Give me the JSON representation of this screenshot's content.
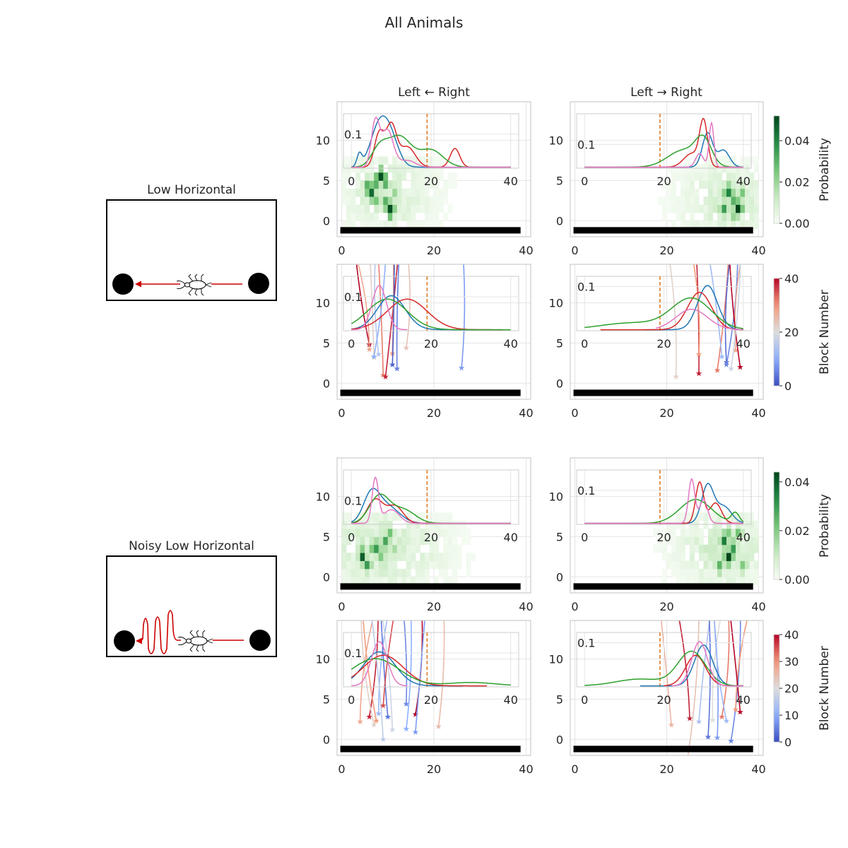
{
  "title": "All Animals",
  "columns": [
    "Left ← Right",
    "Left → Right"
  ],
  "conditions": [
    {
      "name": "Low Horizontal",
      "style": "straight"
    },
    {
      "name": "Noisy Low Horizontal",
      "style": "noisy"
    }
  ],
  "colors": {
    "axis_border": "#cccccc",
    "grid": "#e5e5e5",
    "barrier": "#000000",
    "midline": "#e07b24",
    "arrow": "#cc0000",
    "kde": [
      "#1f77b4",
      "#d62728",
      "#2ca02c",
      "#e377c2"
    ]
  },
  "chart_data": {
    "type": "heatmap",
    "x_ticks": [
      0,
      20,
      40
    ],
    "y_ticks": [
      0,
      5,
      10
    ],
    "xlim": [
      -1,
      41
    ],
    "ylim": [
      -2,
      14.8
    ],
    "inset_x_ticks": [
      0,
      20,
      40
    ],
    "inset_xlim": [
      -2,
      42
    ],
    "inset_y_label": "0.1",
    "midline_x": 19,
    "colorbars": [
      {
        "label": "Probability",
        "ticks": [
          "0.00",
          "0.02",
          "0.04"
        ],
        "range": [
          0,
          0.052
        ],
        "colormap": "Greens"
      },
      {
        "label": "Block Number",
        "ticks": [
          "0",
          "20",
          "40"
        ],
        "range": [
          0,
          40
        ],
        "colormap": "coolwarm"
      },
      {
        "label": "Probability",
        "ticks": [
          "0.00",
          "0.02",
          "0.04"
        ],
        "range": [
          0,
          0.044
        ],
        "colormap": "Greens"
      },
      {
        "label": "Block Number",
        "ticks": [
          "0",
          "10",
          "20",
          "30",
          "40"
        ],
        "range": [
          0,
          40
        ],
        "colormap": "coolwarm"
      }
    ],
    "panels": [
      {
        "condition": "Low Horizontal",
        "direction": "Left ← Right",
        "kind": "heatmap",
        "inset_label_y": 0.1,
        "ymax": 0.16,
        "kde": [
          {
            "peaks": [
              [
                2,
                0.035,
                0.6
              ],
              [
                7,
                0.12,
                2.2
              ],
              [
                10,
                0.07,
                2
              ]
            ]
          },
          {
            "peaks": [
              [
                7,
                0.1,
                1.2
              ],
              [
                10,
                0.12,
                1.3
              ],
              [
                14,
                0.06,
                2
              ],
              [
                26,
                0.055,
                1.2
              ]
            ]
          },
          {
            "peaks": [
              [
                7,
                0.05,
                2
              ],
              [
                12,
                0.09,
                3
              ],
              [
                20,
                0.05,
                3
              ]
            ]
          },
          {
            "peaks": [
              [
                6,
                0.13,
                1
              ],
              [
                9,
                0.11,
                1.5
              ],
              [
                14,
                0.02,
                2
              ]
            ]
          }
        ],
        "hot": [
          [
            6,
            3,
            0.045
          ],
          [
            8,
            5,
            0.05
          ],
          [
            7,
            4,
            0.03
          ],
          [
            10,
            1,
            0.05
          ],
          [
            9,
            2,
            0.03
          ],
          [
            5,
            4,
            0.03
          ],
          [
            9,
            4,
            0.03
          ],
          [
            7,
            2,
            0.025
          ],
          [
            11,
            3,
            0.02
          ]
        ],
        "spread": {
          "cx": 9,
          "cy": 3,
          "sx": 3,
          "sy": 2,
          "minx": 0,
          "maxx": 27
        }
      },
      {
        "condition": "Low Horizontal",
        "direction": "Left → Right",
        "kind": "heatmap",
        "inset_label_y": 0.07,
        "ymax": 0.16,
        "kde": [
          {
            "peaks": [
              [
                31,
                0.1,
                1.3
              ],
              [
                35,
                0.05,
                1.5
              ]
            ]
          },
          {
            "peaks": [
              [
                30,
                0.13,
                1
              ],
              [
                27,
                0.04,
                2
              ]
            ]
          },
          {
            "peaks": [
              [
                25,
                0.05,
                4
              ],
              [
                30,
                0.07,
                2
              ]
            ]
          },
          {
            "peaks": [
              [
                32,
                0.13,
                0.6
              ],
              [
                29,
                0.04,
                1
              ]
            ]
          }
        ],
        "hot": [
          [
            35,
            1,
            0.052
          ],
          [
            33,
            3,
            0.04
          ],
          [
            32,
            1,
            0.035
          ],
          [
            34,
            2,
            0.03
          ],
          [
            36,
            3,
            0.025
          ],
          [
            33,
            4,
            0.02
          ],
          [
            34,
            0,
            0.02
          ]
        ],
        "spread": {
          "cx": 33,
          "cy": 2,
          "sx": 3,
          "sy": 2,
          "minx": 12,
          "maxx": 40
        }
      },
      {
        "condition": "Low Horizontal",
        "direction": "Left ← Right",
        "kind": "trajectory",
        "inset_label_y": 0.1,
        "ymax": 0.16,
        "kde": [
          {
            "peaks": [
              [
                10,
                0.1,
                3.5
              ]
            ],
            "range": [
              0,
              32
            ]
          },
          {
            "peaks": [
              [
                14,
                0.09,
                5
              ]
            ],
            "range": [
              0,
              38
            ]
          },
          {
            "peaks": [
              [
                9,
                0.09,
                5
              ]
            ],
            "range": [
              0,
              40
            ]
          },
          {
            "peaks": [
              [
                7,
                0.13,
                1.8
              ]
            ],
            "range": [
              0,
              14
            ]
          }
        ],
        "endpoints": [
          [
            6,
            4.8,
            40
          ],
          [
            6,
            4.2,
            28
          ],
          [
            7,
            3.2,
            22
          ],
          [
            9,
            1,
            32
          ],
          [
            9.5,
            0.8,
            38
          ],
          [
            11,
            3.7,
            30
          ],
          [
            11,
            2.3,
            2
          ],
          [
            12,
            1.8,
            5
          ],
          [
            14,
            4.4,
            24
          ],
          [
            26,
            1.9,
            8
          ],
          [
            8,
            3.6,
            15
          ],
          [
            7,
            3.3,
            10
          ]
        ]
      },
      {
        "condition": "Low Horizontal",
        "direction": "Left → Right",
        "kind": "trajectory",
        "inset_label_y": 0.13,
        "ymax": 0.16,
        "kde": [
          {
            "peaks": [
              [
                31,
                0.13,
                2.5
              ]
            ],
            "range": [
              15,
              40
            ]
          },
          {
            "peaks": [
              [
                29,
                0.11,
                3
              ]
            ],
            "range": [
              4,
              40
            ]
          },
          {
            "peaks": [
              [
                27,
                0.09,
                5
              ],
              [
                12,
                0.02,
                8
              ]
            ],
            "range": [
              0,
              40
            ]
          },
          {
            "peaks": [
              [
                27,
                0.06,
                4
              ]
            ],
            "range": [
              18,
              40
            ]
          }
        ],
        "endpoints": [
          [
            22,
            0.8,
            22
          ],
          [
            27,
            1.2,
            38
          ],
          [
            27,
            3.6,
            30
          ],
          [
            31,
            1.6,
            32
          ],
          [
            33,
            2.6,
            3
          ],
          [
            33,
            2.3,
            6
          ],
          [
            35,
            4.1,
            28
          ],
          [
            36,
            2,
            40
          ],
          [
            34,
            1.8,
            18
          ],
          [
            32,
            3.3,
            12
          ]
        ]
      },
      {
        "condition": "Noisy Low Horizontal",
        "direction": "Left ← Right",
        "kind": "heatmap",
        "inset_label_y": 0.07,
        "ymax": 0.16,
        "kde": [
          {
            "peaks": [
              [
                5,
                0.08,
                2
              ],
              [
                9,
                0.05,
                3
              ]
            ]
          },
          {
            "peaks": [
              [
                6,
                0.07,
                2
              ],
              [
                11,
                0.05,
                2
              ]
            ]
          },
          {
            "peaks": [
              [
                7,
                0.08,
                2.5
              ],
              [
                13,
                0.04,
                3
              ]
            ]
          },
          {
            "peaks": [
              [
                6,
                0.13,
                0.8
              ],
              [
                10,
                0.04,
                2
              ]
            ]
          }
        ],
        "hot": [
          [
            4,
            2,
            0.04
          ],
          [
            5,
            1,
            0.03
          ],
          [
            7,
            3,
            0.03
          ],
          [
            9,
            4,
            0.028
          ],
          [
            10,
            5,
            0.022
          ],
          [
            6,
            3,
            0.02
          ],
          [
            8,
            2,
            0.02
          ],
          [
            11,
            3,
            0.015
          ]
        ],
        "spread": {
          "cx": 8,
          "cy": 3,
          "sx": 4,
          "sy": 2,
          "minx": 0,
          "maxx": 36
        }
      },
      {
        "condition": "Noisy Low Horizontal",
        "direction": "Left → Right",
        "kind": "heatmap",
        "inset_label_y": 0.1,
        "ymax": 0.16,
        "kde": [
          {
            "peaks": [
              [
                31,
                0.11,
                1.5
              ],
              [
                35,
                0.05,
                2
              ]
            ]
          },
          {
            "peaks": [
              [
                29,
                0.12,
                1
              ],
              [
                33,
                0.06,
                1.5
              ]
            ]
          },
          {
            "peaks": [
              [
                28,
                0.07,
                4
              ],
              [
                38,
                0.03,
                1
              ]
            ]
          },
          {
            "peaks": [
              [
                27,
                0.13,
                0.8
              ],
              [
                30,
                0.07,
                1
              ]
            ]
          }
        ],
        "hot": [
          [
            33,
            2,
            0.044
          ],
          [
            32,
            4,
            0.035
          ],
          [
            34,
            3,
            0.03
          ],
          [
            31,
            1,
            0.025
          ],
          [
            35,
            5,
            0.022
          ],
          [
            33,
            5,
            0.02
          ],
          [
            36,
            1,
            0.02
          ]
        ],
        "spread": {
          "cx": 32,
          "cy": 3,
          "sx": 3,
          "sy": 2,
          "minx": 10,
          "maxx": 40
        }
      },
      {
        "condition": "Noisy Low Horizontal",
        "direction": "Left ← Right",
        "kind": "trajectory",
        "inset_label_y": 0.1,
        "ymax": 0.16,
        "kde": [
          {
            "peaks": [
              [
                7,
                0.1,
                4
              ]
            ],
            "range": [
              0,
              28
            ]
          },
          {
            "peaks": [
              [
                8,
                0.09,
                5
              ]
            ],
            "range": [
              0,
              34
            ]
          },
          {
            "peaks": [
              [
                6,
                0.08,
                6
              ],
              [
                30,
                0.01,
                6
              ]
            ],
            "range": [
              0,
              40
            ]
          },
          {
            "peaks": [
              [
                7,
                0.13,
                2
              ]
            ],
            "range": [
              0,
              14
            ]
          }
        ],
        "endpoints": [
          [
            4,
            2.2,
            28
          ],
          [
            6,
            2.8,
            38
          ],
          [
            7,
            1.8,
            22
          ],
          [
            7.5,
            2.3,
            30
          ],
          [
            8,
            3.2,
            12
          ],
          [
            9,
            0,
            16
          ],
          [
            10,
            2.8,
            4
          ],
          [
            11,
            1.2,
            18
          ],
          [
            14,
            1.3,
            10
          ],
          [
            14,
            4.4,
            6
          ],
          [
            16,
            3.1,
            40
          ],
          [
            16,
            0.9,
            8
          ],
          [
            21,
            1.6,
            25
          ],
          [
            9,
            4.2,
            35
          ]
        ]
      },
      {
        "condition": "Noisy Low Horizontal",
        "direction": "Left → Right",
        "kind": "trajectory",
        "inset_label_y": 0.13,
        "ymax": 0.16,
        "kde": [
          {
            "peaks": [
              [
                30,
                0.12,
                2.3
              ]
            ],
            "range": [
              14,
              40
            ]
          },
          {
            "peaks": [
              [
                28,
                0.09,
                2.5
              ]
            ],
            "range": [
              20,
              40
            ]
          },
          {
            "peaks": [
              [
                27,
                0.1,
                3.5
              ],
              [
                14,
                0.02,
                6
              ]
            ],
            "range": [
              0,
              40
            ]
          },
          {
            "peaks": [
              [
                29,
                0.13,
                2
              ]
            ],
            "range": [
              22,
              40
            ]
          }
        ],
        "endpoints": [
          [
            21,
            1.8,
            26
          ],
          [
            25,
            2.6,
            38
          ],
          [
            27,
            2.2,
            14
          ],
          [
            29,
            0.3,
            4
          ],
          [
            30,
            2.4,
            20
          ],
          [
            31,
            0.2,
            8
          ],
          [
            32,
            2.8,
            32
          ],
          [
            33,
            2.3,
            12
          ],
          [
            34,
            -0.2,
            6
          ],
          [
            35,
            3.7,
            30
          ],
          [
            36,
            3.4,
            40
          ],
          [
            24.5,
            -2.5,
            24
          ]
        ]
      }
    ]
  }
}
